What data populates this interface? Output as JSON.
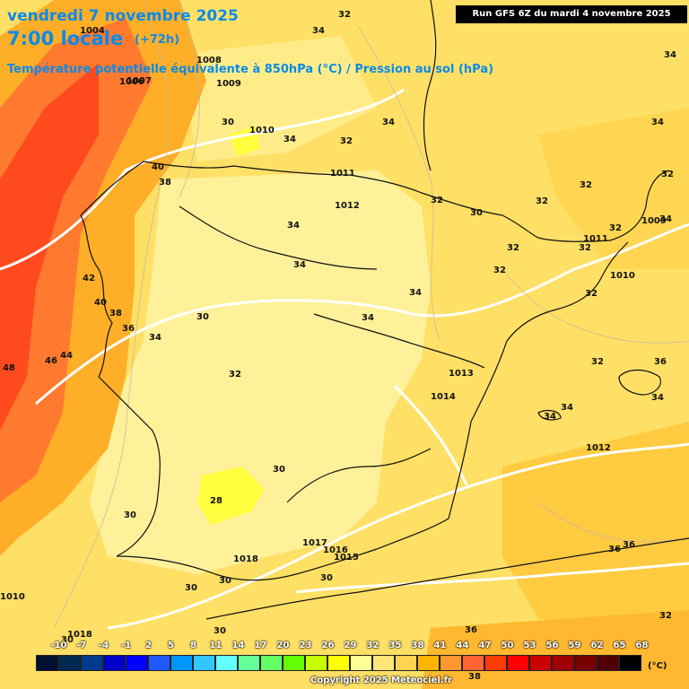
{
  "header": {
    "date": "vendredi 7 novembre 2025",
    "time": "7:00 locale",
    "lead": "(+72h)",
    "subtitle": "Température potentielle équivalente à 850hPa (°C) / Pression au sol (hPa)",
    "run": "Run GFS 6Z du mardi 4 novembre 2025"
  },
  "legend": {
    "ticks": [
      "-10",
      "-7",
      "-4",
      "-1",
      "2",
      "5",
      "8",
      "11",
      "14",
      "17",
      "20",
      "23",
      "26",
      "29",
      "32",
      "35",
      "38",
      "41",
      "44",
      "47",
      "50",
      "53",
      "56",
      "59",
      "62",
      "65",
      "68"
    ],
    "colors": [
      "#001030",
      "#002850",
      "#003a8c",
      "#0000c8",
      "#0000ff",
      "#1e5aff",
      "#0096ff",
      "#32c8ff",
      "#64ffff",
      "#64ff96",
      "#64ff64",
      "#64ff00",
      "#c8ff00",
      "#ffff00",
      "#ffff96",
      "#ffe678",
      "#ffd250",
      "#ffb400",
      "#ff9632",
      "#ff6432",
      "#ff3c00",
      "#ff0000",
      "#c80000",
      "#a00000",
      "#780000",
      "#500000",
      "#000000"
    ],
    "unit": "(°C)"
  },
  "copyright": "Copyright 2025 Meteociel.fr",
  "temp_labels": [
    "32",
    "34",
    "34",
    "34",
    "34",
    "34",
    "32",
    "32",
    "32",
    "32",
    "32",
    "32",
    "34",
    "30",
    "30",
    "34",
    "40",
    "38",
    "42",
    "40",
    "38",
    "36",
    "34",
    "48",
    "46",
    "44",
    "30",
    "32",
    "34",
    "34",
    "34",
    "32",
    "36",
    "34",
    "34",
    "32",
    "30",
    "28",
    "30",
    "30",
    "30",
    "30",
    "36",
    "32",
    "36",
    "38",
    "36",
    "34",
    "32",
    "30",
    "32",
    "32",
    "30"
  ],
  "pressure_labels": [
    "1004",
    "1007",
    "1006",
    "1008",
    "1009",
    "1010",
    "1011",
    "1012",
    "1011",
    "1010",
    "1009",
    "1013",
    "1014",
    "1012",
    "1017",
    "1016",
    "1015",
    "1018",
    "1018",
    "1010"
  ]
}
